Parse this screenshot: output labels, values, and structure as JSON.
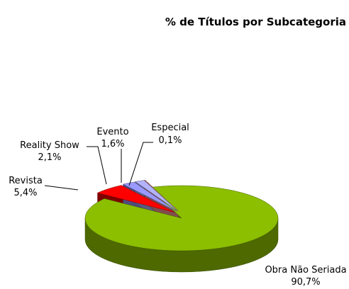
{
  "chart_data": {
    "type": "pie",
    "title": "% de Títulos por Subcategoria",
    "categories": [
      "Obra Não Seriada",
      "Revista",
      "Reality Show",
      "Evento",
      "Especial"
    ],
    "values": [
      90.7,
      5.4,
      2.1,
      1.6,
      0.1
    ],
    "value_labels": [
      "90,7%",
      "5,4%",
      "2,1%",
      "1,6%",
      "0,1%"
    ],
    "colors": [
      "#8cbf00",
      "#ff0000",
      "#9999ff",
      "#b3b3ff",
      "#ff9999"
    ]
  }
}
